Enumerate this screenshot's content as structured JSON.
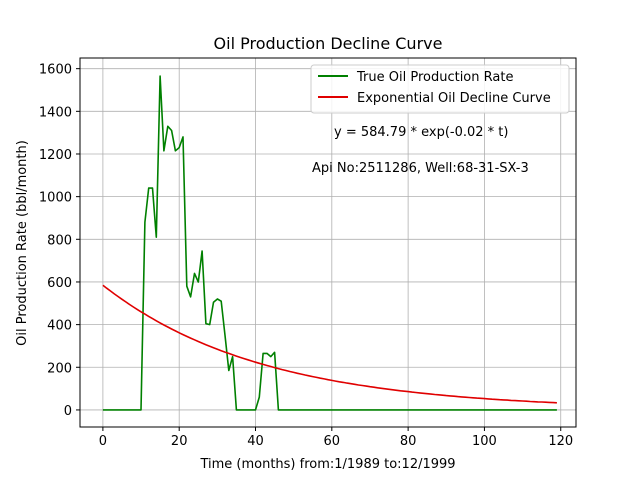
{
  "chart_data": {
    "type": "line",
    "title": "Oil Production Decline Curve",
    "xlabel": "Time (months) from:1/1989 to:12/1999",
    "ylabel": "Oil Production Rate (bbl/month)",
    "xlim": [
      -6,
      124
    ],
    "ylim": [
      -80,
      1650
    ],
    "xticks": [
      0,
      20,
      40,
      60,
      80,
      100,
      120
    ],
    "yticks": [
      0,
      200,
      400,
      600,
      800,
      1000,
      1200,
      1400,
      1600
    ],
    "grid": true,
    "legend_position": "upper right",
    "annotations": [
      "y = 584.79 * exp(-0.02 * t)",
      "Api No:2511286, Well:68-31-SX-3"
    ],
    "series": [
      {
        "name": "True Oil Production Rate",
        "color": "#008000",
        "kind": "measured",
        "x": [
          0,
          1,
          2,
          3,
          4,
          5,
          6,
          7,
          8,
          9,
          10,
          11,
          12,
          13,
          14,
          15,
          16,
          17,
          18,
          19,
          20,
          21,
          22,
          23,
          24,
          25,
          26,
          27,
          28,
          29,
          30,
          31,
          32,
          33,
          34,
          35,
          36,
          37,
          38,
          39,
          40,
          41,
          42,
          43,
          44,
          45,
          46,
          47,
          48,
          49,
          50,
          51,
          52,
          53,
          54,
          55,
          56,
          57,
          58,
          59,
          60,
          61,
          62,
          63,
          64,
          65,
          66,
          67,
          68,
          69,
          70,
          71,
          72,
          73,
          74,
          75,
          76,
          77,
          78,
          79,
          80,
          81,
          82,
          83,
          84,
          85,
          86,
          87,
          88,
          89,
          90,
          91,
          92,
          93,
          94,
          95,
          96,
          97,
          98,
          99,
          100,
          101,
          102,
          103,
          104,
          105,
          106,
          107,
          108,
          109,
          110,
          111,
          112,
          113,
          114,
          115,
          116,
          117,
          118,
          119
        ],
        "values": [
          0,
          0,
          0,
          0,
          0,
          0,
          0,
          0,
          0,
          0,
          0,
          880,
          1040,
          1040,
          810,
          1565,
          1215,
          1330,
          1310,
          1215,
          1230,
          1280,
          580,
          530,
          640,
          600,
          745,
          405,
          400,
          505,
          520,
          510,
          350,
          185,
          250,
          0,
          0,
          0,
          0,
          0,
          0,
          60,
          265,
          265,
          250,
          270,
          0,
          0,
          0,
          0,
          0,
          0,
          0,
          0,
          0,
          0,
          0,
          0,
          0,
          0,
          0,
          0,
          0,
          0,
          0,
          0,
          0,
          0,
          0,
          0,
          0,
          0,
          0,
          0,
          0,
          0,
          0,
          0,
          0,
          0,
          0,
          0,
          0,
          0,
          0,
          0,
          0,
          0,
          0,
          0,
          0,
          0,
          0,
          0,
          0,
          0,
          0,
          0,
          0,
          0,
          0,
          0,
          0,
          0,
          0,
          0,
          0,
          0,
          0,
          0,
          0,
          0,
          0,
          0,
          0,
          0,
          0,
          0,
          0,
          0
        ]
      },
      {
        "name": "Exponential Oil Decline Curve",
        "color": "#e00000",
        "kind": "model",
        "a": 584.79,
        "b": -0.024,
        "x_range": [
          0,
          119
        ]
      }
    ]
  }
}
